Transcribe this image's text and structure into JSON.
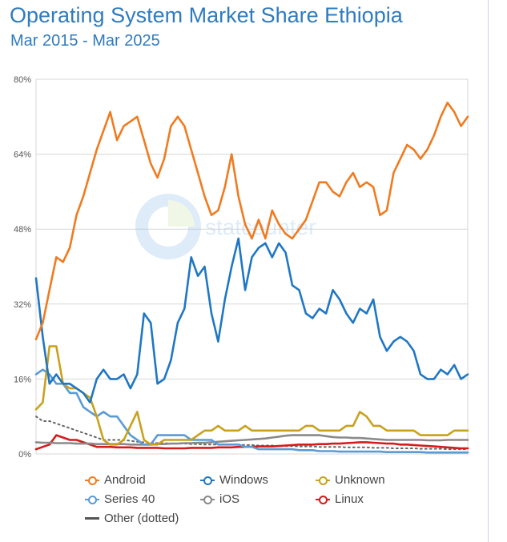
{
  "header": {
    "title": "Operating System Market Share Ethiopia",
    "subtitle": "Mar 2015 - Mar 2025"
  },
  "watermark": "statcounter",
  "legend": [
    {
      "label": "Android",
      "color": "#f07b20",
      "style": "marker"
    },
    {
      "label": "Windows",
      "color": "#1f77c4",
      "style": "marker"
    },
    {
      "label": "Unknown",
      "color": "#c9a11c",
      "style": "marker"
    },
    {
      "label": "Series 40",
      "color": "#5b9bd5",
      "style": "marker"
    },
    {
      "label": "iOS",
      "color": "#8a8a8a",
      "style": "marker"
    },
    {
      "label": "Linux",
      "color": "#d61b1b",
      "style": "marker"
    },
    {
      "label": "Other (dotted)",
      "color": "#555555",
      "style": "plain"
    }
  ],
  "chart_data": {
    "type": "line",
    "title": "Operating System Market Share Ethiopia",
    "subtitle": "Mar 2015 - Mar 2025",
    "x_range": [
      "Mar 2015",
      "Mar 2025"
    ],
    "ylim": [
      0,
      80
    ],
    "y_ticks": [
      0,
      16,
      32,
      48,
      64,
      80
    ],
    "y_tick_labels": [
      "0%",
      "16%",
      "32%",
      "48%",
      "64%",
      "80%"
    ],
    "grid": true,
    "legend_position": "bottom",
    "series": [
      {
        "name": "Android",
        "color": "#f07b20",
        "dotted": false,
        "values": [
          24.5,
          28,
          35,
          42,
          41,
          44,
          51,
          55,
          60,
          65,
          69,
          73,
          67,
          70,
          71,
          72,
          67,
          62,
          59,
          63,
          70,
          72,
          70,
          65,
          60,
          55,
          51,
          52,
          57,
          64,
          55,
          49,
          46,
          50,
          46,
          52,
          49,
          47,
          46,
          48,
          50,
          54,
          58,
          58,
          56,
          55,
          58,
          60,
          57,
          58,
          57,
          51,
          52,
          60,
          63,
          66,
          65,
          63,
          65,
          68,
          72,
          75,
          73,
          70,
          72
        ]
      },
      {
        "name": "Windows",
        "color": "#1f77c4",
        "dotted": false,
        "values": [
          37.5,
          25,
          15,
          17,
          15,
          15,
          14,
          13,
          11,
          16,
          18,
          16,
          16,
          17,
          14,
          17,
          30,
          28,
          15,
          16,
          20,
          28,
          31,
          42,
          38,
          40,
          30,
          24,
          33,
          40,
          46,
          35,
          42,
          44,
          45,
          42,
          45,
          43,
          36,
          35,
          30,
          29,
          31,
          30,
          35,
          33,
          30,
          28,
          31,
          30,
          33,
          25,
          22,
          24,
          25,
          24,
          22,
          17,
          16,
          16,
          18,
          17,
          19,
          16,
          17
        ]
      },
      {
        "name": "Unknown",
        "color": "#c9a11c",
        "dotted": false,
        "values": [
          9.5,
          11,
          23,
          23,
          15,
          14,
          14,
          13,
          12,
          8,
          3,
          2,
          2,
          3,
          6,
          9,
          3,
          2,
          2,
          3,
          3,
          3,
          3,
          3,
          4,
          5,
          5,
          6,
          5,
          5,
          5,
          6,
          5,
          5,
          5,
          5,
          5,
          5,
          5,
          5,
          6,
          6,
          5,
          5,
          5,
          5,
          6,
          6,
          9,
          8,
          6,
          6,
          5,
          5,
          5,
          5,
          5,
          4,
          4,
          4,
          4,
          4,
          5,
          5,
          5
        ]
      },
      {
        "name": "Series 40",
        "color": "#5b9bd5",
        "dotted": false,
        "values": [
          17,
          18,
          17,
          15,
          15,
          13,
          13,
          10,
          9,
          8,
          9,
          8,
          8,
          6,
          4,
          3,
          2,
          2,
          4,
          4,
          4,
          4,
          4,
          3,
          3,
          3,
          3,
          2,
          2,
          2,
          2,
          1.5,
          1.5,
          1,
          1,
          1,
          1,
          1,
          1,
          0.8,
          0.8,
          0.8,
          0.6,
          0.6,
          0.6,
          0.5,
          0.5,
          0.5,
          0.5,
          0.5,
          0.5,
          0.5,
          0.4,
          0.4,
          0.4,
          0.4,
          0.4,
          0.4,
          0.3,
          0.3,
          0.3,
          0.3,
          0.3,
          0.3,
          0.3
        ]
      },
      {
        "name": "iOS",
        "color": "#8a8a8a",
        "dotted": false,
        "values": [
          2.5,
          2.4,
          2.4,
          2.3,
          2.3,
          2.3,
          2.2,
          2.2,
          2.2,
          2.1,
          2.1,
          2.1,
          2.1,
          2.1,
          2,
          2,
          2,
          2,
          2.1,
          2.1,
          2.2,
          2.2,
          2.3,
          2.3,
          2.4,
          2.4,
          2.5,
          2.6,
          2.7,
          2.8,
          2.9,
          3,
          3.1,
          3.2,
          3.3,
          3.5,
          3.7,
          3.9,
          4,
          4,
          4,
          4,
          4,
          3.8,
          3.6,
          3.5,
          3.5,
          3.4,
          3.4,
          3.3,
          3.2,
          3.1,
          3,
          3,
          3,
          3,
          3,
          3,
          2.9,
          2.9,
          2.9,
          3,
          3,
          3,
          3
        ]
      },
      {
        "name": "Linux",
        "color": "#d61b1b",
        "dotted": false,
        "values": [
          1,
          1.5,
          2,
          4,
          3.5,
          3,
          3,
          2.5,
          2,
          1.5,
          1.5,
          1.5,
          1.4,
          1.4,
          1.4,
          1.3,
          1.3,
          1.3,
          1.3,
          1.2,
          1.2,
          1.2,
          1.2,
          1.3,
          1.3,
          1.3,
          1.3,
          1.4,
          1.4,
          1.4,
          1.5,
          1.5,
          1.5,
          1.6,
          1.6,
          1.6,
          1.7,
          1.8,
          1.9,
          2,
          2,
          2,
          2.1,
          2.1,
          2.2,
          2.2,
          2.3,
          2.4,
          2.5,
          2.5,
          2.4,
          2.3,
          2.2,
          2.2,
          2,
          2,
          1.9,
          1.8,
          1.7,
          1.6,
          1.5,
          1.4,
          1.3,
          1.2,
          1.2
        ]
      },
      {
        "name": "Other",
        "color": "#666666",
        "dotted": true,
        "values": [
          8,
          7,
          7,
          6.5,
          6,
          5.5,
          5,
          4.5,
          4,
          3.5,
          3,
          3,
          3,
          3,
          2.8,
          2.6,
          2.5,
          2.4,
          2.3,
          2.3,
          2.2,
          2.2,
          2.2,
          2.1,
          2.1,
          2,
          2,
          2,
          2,
          2,
          2,
          1.9,
          1.9,
          1.8,
          1.8,
          1.8,
          1.7,
          1.7,
          1.7,
          1.6,
          1.6,
          1.6,
          1.5,
          1.5,
          1.5,
          1.5,
          1.4,
          1.4,
          1.4,
          1.4,
          1.3,
          1.3,
          1.3,
          1.2,
          1.2,
          1.2,
          1.2,
          1.1,
          1.1,
          1.1,
          1.1,
          1,
          1,
          1,
          1
        ]
      }
    ]
  }
}
